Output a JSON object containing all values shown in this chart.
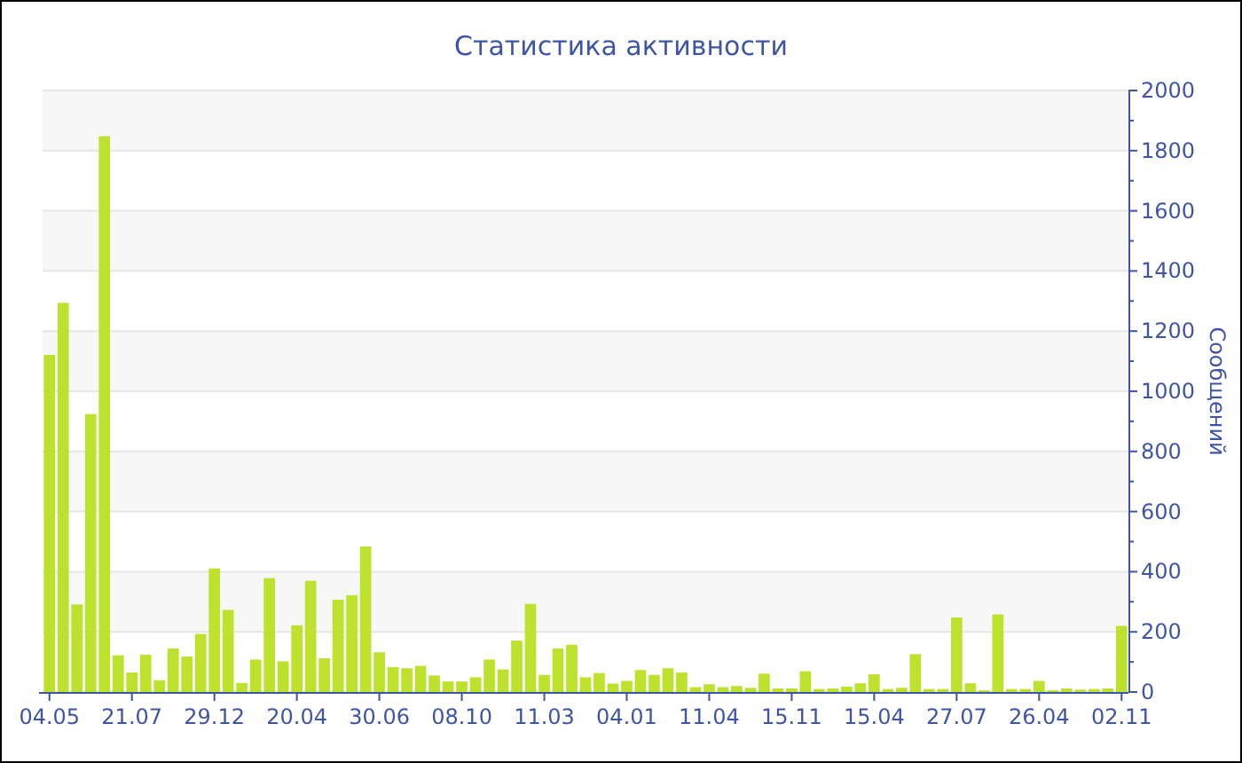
{
  "chart_data": {
    "type": "bar",
    "title": "Статистика активности",
    "ylabel": "Сообщений",
    "categories": [
      "04.05",
      null,
      null,
      null,
      null,
      null,
      "21.07",
      null,
      null,
      null,
      null,
      null,
      "29.12",
      null,
      null,
      null,
      null,
      null,
      "20.04",
      null,
      null,
      null,
      null,
      null,
      "30.06",
      null,
      null,
      null,
      null,
      null,
      "08.10",
      null,
      null,
      null,
      null,
      null,
      "11.03",
      null,
      null,
      null,
      null,
      null,
      "04.01",
      null,
      null,
      null,
      null,
      null,
      "11.04",
      null,
      null,
      null,
      null,
      null,
      "15.11",
      null,
      null,
      null,
      null,
      null,
      "15.04",
      null,
      null,
      null,
      null,
      null,
      "27.07",
      null,
      null,
      null,
      null,
      null,
      "26.04",
      null,
      null,
      null,
      null,
      null,
      "02.11"
    ],
    "values": [
      1121,
      1294,
      291,
      924,
      1848,
      122,
      65,
      124,
      39,
      145,
      118,
      193,
      411,
      273,
      30,
      108,
      379,
      102,
      222,
      370,
      112,
      307,
      322,
      484,
      132,
      83,
      79,
      87,
      55,
      35,
      35,
      49,
      108,
      75,
      171,
      293,
      57,
      145,
      157,
      49,
      63,
      28,
      37,
      73,
      57,
      79,
      65,
      16,
      26,
      16,
      20,
      14,
      61,
      12,
      12,
      69,
      10,
      12,
      18,
      29,
      59,
      10,
      14,
      126,
      10,
      10,
      248,
      29,
      6,
      258,
      10,
      10,
      37,
      6,
      12,
      8,
      10,
      12,
      220
    ],
    "color": "#bde22e",
    "ylim": [
      0,
      2000
    ],
    "yticks": [
      0,
      200,
      400,
      600,
      800,
      1000,
      1200,
      1400,
      1600,
      1800,
      2000
    ],
    "grid": "y"
  }
}
